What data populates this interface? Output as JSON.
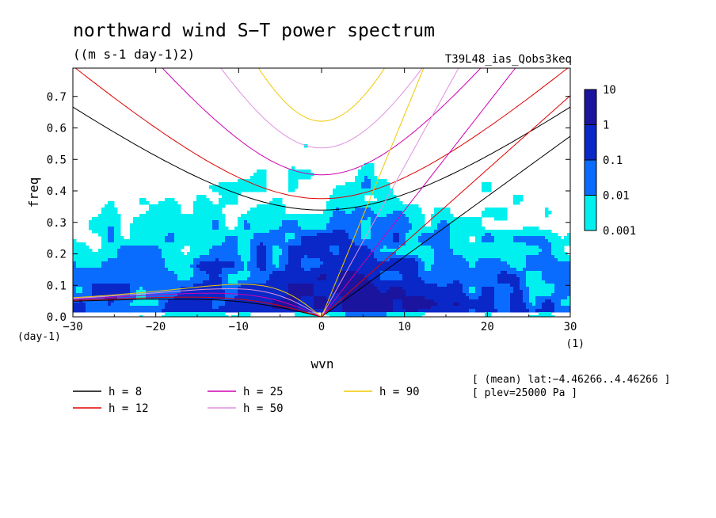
{
  "chart_data": {
    "type": "heatmap",
    "title": "northward wind S−T power spectrum",
    "units": "((m s-1 day-1)2)",
    "run_name": "T39L48_ias_Qobs3keq",
    "xlabel": "wvn",
    "ylabel": "freq",
    "x_unit": "(1)",
    "y_unit": "(day-1)",
    "xlim": [
      -30,
      30
    ],
    "ylim": [
      0,
      0.79
    ],
    "x_ticks": [
      -30,
      -20,
      -10,
      0,
      10,
      20,
      30
    ],
    "x_tick_labels": [
      "−30",
      "−20",
      "−10",
      "0",
      "10",
      "20",
      "30"
    ],
    "y_ticks": [
      0.0,
      0.1,
      0.2,
      0.3,
      0.4,
      0.5,
      0.6,
      0.7
    ],
    "y_tick_labels": [
      "0.0",
      "0.1",
      "0.2",
      "0.3",
      "0.4",
      "0.5",
      "0.6",
      "0.7"
    ],
    "colorbar": {
      "levels": [
        "0.001",
        "0.01",
        "0.1",
        "1",
        "10"
      ],
      "colors": [
        "#00f0f0",
        "#0a6cff",
        "#0a28c8",
        "#1a149e"
      ]
    },
    "dispersion_curves": [
      {
        "label": "h =  8",
        "h": 8,
        "color": "#000000"
      },
      {
        "label": "h = 12",
        "h": 12,
        "color": "#e00000"
      },
      {
        "label": "h = 25",
        "h": 25,
        "color": "#d000b0"
      },
      {
        "label": "h = 50",
        "h": 50,
        "color": "#e090e0"
      },
      {
        "label": "h = 90",
        "h": 90,
        "color": "#f0c800"
      }
    ],
    "annotations": [
      "[ (mean) lat:−4.46266..4.46266 ]",
      "[ plev=25000 Pa ]"
    ]
  }
}
